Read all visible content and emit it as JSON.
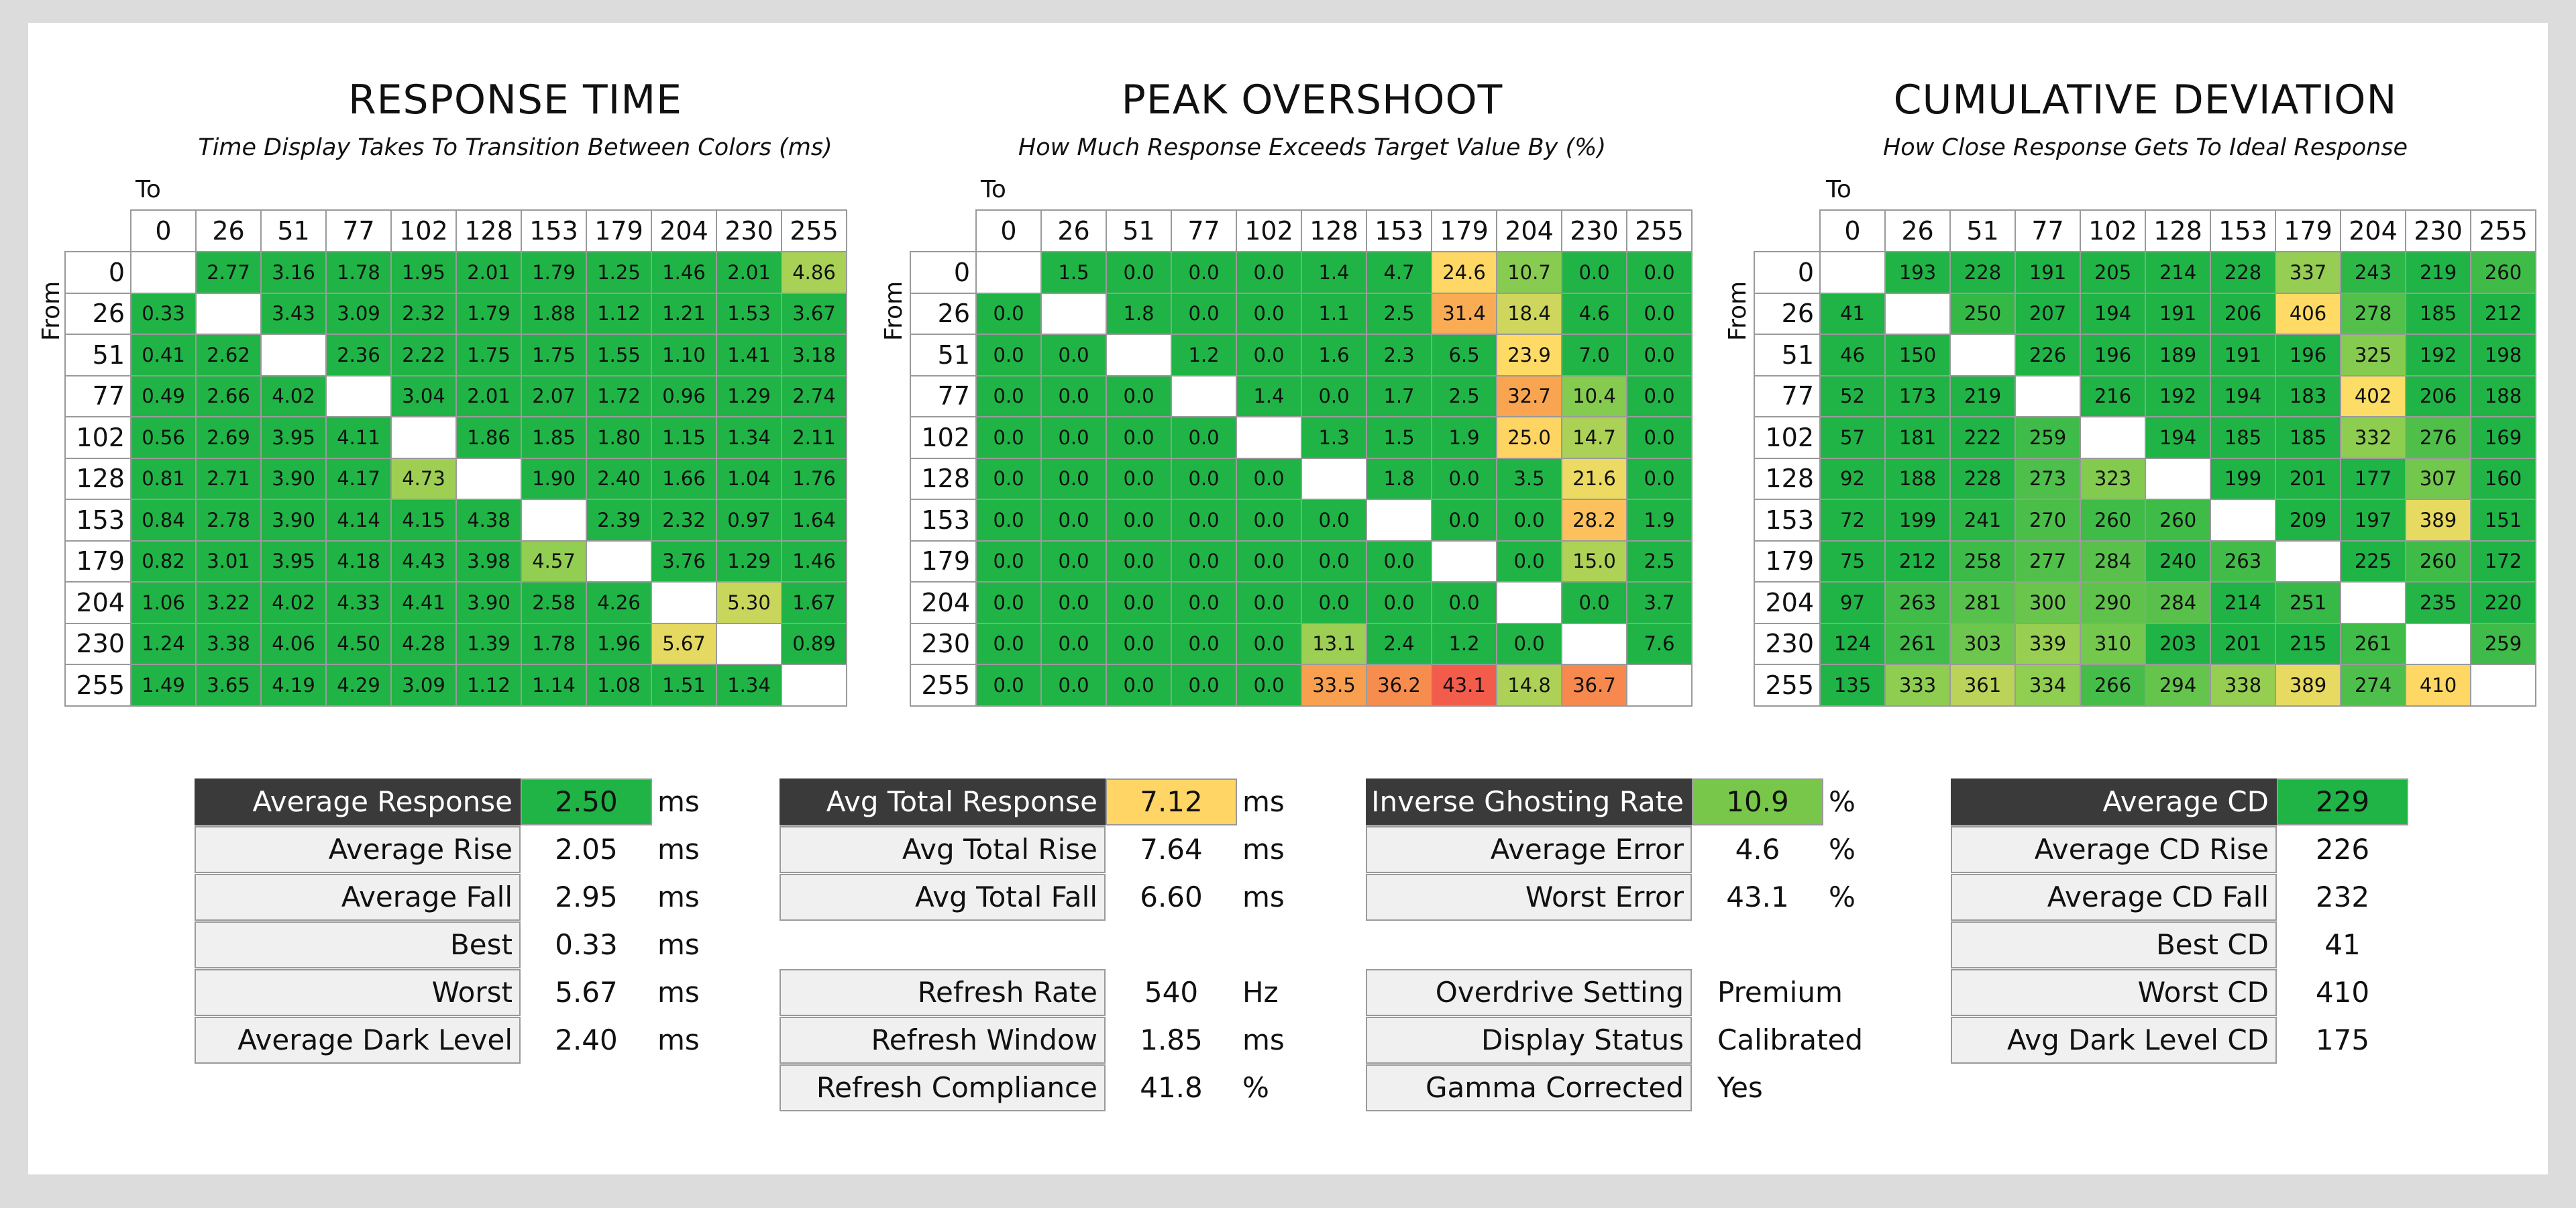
{
  "axis_labels": {
    "to": "To",
    "from": "From"
  },
  "levels": [
    "0",
    "26",
    "51",
    "77",
    "102",
    "128",
    "153",
    "179",
    "204",
    "230",
    "255"
  ],
  "colors": {
    "header_dark": "#3a3a3a",
    "green": "#1fb445",
    "yellow": "#ffdd66",
    "red": "#f35c4b"
  },
  "panels": [
    {
      "title": "RESPONSE TIME",
      "subtitle": "Time Display Takes To Transition Between Colors (ms)"
    },
    {
      "title": "PEAK OVERSHOOT",
      "subtitle": "How Much Response Exceeds Target Value By (%)"
    },
    {
      "title": "CUMULATIVE DEVIATION",
      "subtitle": "How Close Response Gets To Ideal Response"
    }
  ],
  "chart_data": [
    {
      "type": "heatmap",
      "title": "RESPONSE TIME",
      "subtitle": "Time Display Takes To Transition Between Colors (ms)",
      "xlabel": "To",
      "ylabel": "From",
      "x": [
        "0",
        "26",
        "51",
        "77",
        "102",
        "128",
        "153",
        "179",
        "204",
        "230",
        "255"
      ],
      "y": [
        "0",
        "26",
        "51",
        "77",
        "102",
        "128",
        "153",
        "179",
        "204",
        "230",
        "255"
      ],
      "values": [
        [
          null,
          "2.77",
          "3.16",
          "1.78",
          "1.95",
          "2.01",
          "1.79",
          "1.25",
          "1.46",
          "2.01",
          "4.86"
        ],
        [
          "0.33",
          null,
          "3.43",
          "3.09",
          "2.32",
          "1.79",
          "1.88",
          "1.12",
          "1.21",
          "1.53",
          "3.67"
        ],
        [
          "0.41",
          "2.62",
          null,
          "2.36",
          "2.22",
          "1.75",
          "1.75",
          "1.55",
          "1.10",
          "1.41",
          "3.18"
        ],
        [
          "0.49",
          "2.66",
          "4.02",
          null,
          "3.04",
          "2.01",
          "2.07",
          "1.72",
          "0.96",
          "1.29",
          "2.74"
        ],
        [
          "0.56",
          "2.69",
          "3.95",
          "4.11",
          null,
          "1.86",
          "1.85",
          "1.80",
          "1.15",
          "1.34",
          "2.11"
        ],
        [
          "0.81",
          "2.71",
          "3.90",
          "4.17",
          "4.73",
          null,
          "1.90",
          "2.40",
          "1.66",
          "1.04",
          "1.76"
        ],
        [
          "0.84",
          "2.78",
          "3.90",
          "4.14",
          "4.15",
          "4.38",
          null,
          "2.39",
          "2.32",
          "0.97",
          "1.64"
        ],
        [
          "0.82",
          "3.01",
          "3.95",
          "4.18",
          "4.43",
          "3.98",
          "4.57",
          null,
          "3.76",
          "1.29",
          "1.46"
        ],
        [
          "1.06",
          "3.22",
          "4.02",
          "4.33",
          "4.41",
          "3.90",
          "2.58",
          "4.26",
          null,
          "5.30",
          "1.67"
        ],
        [
          "1.24",
          "3.38",
          "4.06",
          "4.50",
          "4.28",
          "1.39",
          "1.78",
          "1.96",
          "5.67",
          null,
          "0.89"
        ],
        [
          "1.49",
          "3.65",
          "4.19",
          "4.29",
          "3.09",
          "1.12",
          "1.14",
          "1.08",
          "1.51",
          "1.34",
          null
        ]
      ]
    },
    {
      "type": "heatmap",
      "title": "PEAK OVERSHOOT",
      "subtitle": "How Much Response Exceeds Target Value By (%)",
      "xlabel": "To",
      "ylabel": "From",
      "x": [
        "0",
        "26",
        "51",
        "77",
        "102",
        "128",
        "153",
        "179",
        "204",
        "230",
        "255"
      ],
      "y": [
        "0",
        "26",
        "51",
        "77",
        "102",
        "128",
        "153",
        "179",
        "204",
        "230",
        "255"
      ],
      "values": [
        [
          null,
          "1.5",
          "0.0",
          "0.0",
          "0.0",
          "1.4",
          "4.7",
          "24.6",
          "10.7",
          "0.0",
          "0.0"
        ],
        [
          "0.0",
          null,
          "1.8",
          "0.0",
          "0.0",
          "1.1",
          "2.5",
          "31.4",
          "18.4",
          "4.6",
          "0.0"
        ],
        [
          "0.0",
          "0.0",
          null,
          "1.2",
          "0.0",
          "1.6",
          "2.3",
          "6.5",
          "23.9",
          "7.0",
          "0.0"
        ],
        [
          "0.0",
          "0.0",
          "0.0",
          null,
          "1.4",
          "0.0",
          "1.7",
          "2.5",
          "32.7",
          "10.4",
          "0.0"
        ],
        [
          "0.0",
          "0.0",
          "0.0",
          "0.0",
          null,
          "1.3",
          "1.5",
          "1.9",
          "25.0",
          "14.7",
          "0.0"
        ],
        [
          "0.0",
          "0.0",
          "0.0",
          "0.0",
          "0.0",
          null,
          "1.8",
          "0.0",
          "3.5",
          "21.6",
          "0.0"
        ],
        [
          "0.0",
          "0.0",
          "0.0",
          "0.0",
          "0.0",
          "0.0",
          null,
          "0.0",
          "0.0",
          "28.2",
          "1.9"
        ],
        [
          "0.0",
          "0.0",
          "0.0",
          "0.0",
          "0.0",
          "0.0",
          "0.0",
          null,
          "0.0",
          "15.0",
          "2.5"
        ],
        [
          "0.0",
          "0.0",
          "0.0",
          "0.0",
          "0.0",
          "0.0",
          "0.0",
          "0.0",
          null,
          "0.0",
          "3.7"
        ],
        [
          "0.0",
          "0.0",
          "0.0",
          "0.0",
          "0.0",
          "13.1",
          "2.4",
          "1.2",
          "0.0",
          null,
          "7.6"
        ],
        [
          "0.0",
          "0.0",
          "0.0",
          "0.0",
          "0.0",
          "33.5",
          "36.2",
          "43.1",
          "14.8",
          "36.7",
          null
        ]
      ]
    },
    {
      "type": "heatmap",
      "title": "CUMULATIVE DEVIATION",
      "subtitle": "How Close Response Gets To Ideal Response",
      "xlabel": "To",
      "ylabel": "From",
      "x": [
        "0",
        "26",
        "51",
        "77",
        "102",
        "128",
        "153",
        "179",
        "204",
        "230",
        "255"
      ],
      "y": [
        "0",
        "26",
        "51",
        "77",
        "102",
        "128",
        "153",
        "179",
        "204",
        "230",
        "255"
      ],
      "values": [
        [
          null,
          "193",
          "228",
          "191",
          "205",
          "214",
          "228",
          "337",
          "243",
          "219",
          "260"
        ],
        [
          "41",
          null,
          "250",
          "207",
          "194",
          "191",
          "206",
          "406",
          "278",
          "185",
          "212"
        ],
        [
          "46",
          "150",
          null,
          "226",
          "196",
          "189",
          "191",
          "196",
          "325",
          "192",
          "198"
        ],
        [
          "52",
          "173",
          "219",
          null,
          "216",
          "192",
          "194",
          "183",
          "402",
          "206",
          "188"
        ],
        [
          "57",
          "181",
          "222",
          "259",
          null,
          "194",
          "185",
          "185",
          "332",
          "276",
          "169"
        ],
        [
          "92",
          "188",
          "228",
          "273",
          "323",
          null,
          "199",
          "201",
          "177",
          "307",
          "160"
        ],
        [
          "72",
          "199",
          "241",
          "270",
          "260",
          "260",
          null,
          "209",
          "197",
          "389",
          "151"
        ],
        [
          "75",
          "212",
          "258",
          "277",
          "284",
          "240",
          "263",
          null,
          "225",
          "260",
          "172"
        ],
        [
          "97",
          "263",
          "281",
          "300",
          "290",
          "284",
          "214",
          "251",
          null,
          "235",
          "220"
        ],
        [
          "124",
          "261",
          "303",
          "339",
          "310",
          "203",
          "201",
          "215",
          "261",
          null,
          "259"
        ],
        [
          "135",
          "333",
          "361",
          "334",
          "266",
          "294",
          "338",
          "389",
          "274",
          "410",
          null
        ]
      ]
    }
  ],
  "stats": {
    "response": [
      {
        "label": "Average Response",
        "value": "2.50",
        "unit": "ms",
        "head": true,
        "fill": "#1fb445"
      },
      {
        "label": "Average Rise",
        "value": "2.05",
        "unit": "ms"
      },
      {
        "label": "Average Fall",
        "value": "2.95",
        "unit": "ms"
      },
      {
        "label": "Best",
        "value": "0.33",
        "unit": "ms"
      },
      {
        "label": "Worst",
        "value": "5.67",
        "unit": "ms"
      },
      {
        "label": "Average Dark Level",
        "value": "2.40",
        "unit": "ms"
      }
    ],
    "total": [
      {
        "label": "Avg Total Response",
        "value": "7.12",
        "unit": "ms",
        "head": true,
        "fill": "#ffd566"
      },
      {
        "label": "Avg Total Rise",
        "value": "7.64",
        "unit": "ms"
      },
      {
        "label": "Avg Total Fall",
        "value": "6.60",
        "unit": "ms"
      }
    ],
    "refresh": [
      {
        "label": "Refresh Rate",
        "value": "540",
        "unit": "Hz"
      },
      {
        "label": "Refresh Window",
        "value": "1.85",
        "unit": "ms"
      },
      {
        "label": "Refresh Compliance",
        "value": "41.8",
        "unit": "%"
      }
    ],
    "overshoot": [
      {
        "label": "Inverse Ghosting Rate",
        "value": "10.9",
        "unit": "%",
        "head": true,
        "fill": "#79c74a"
      },
      {
        "label": "Average Error",
        "value": "4.6",
        "unit": "%"
      },
      {
        "label": "Worst Error",
        "value": "43.1",
        "unit": "%"
      }
    ],
    "settings": [
      {
        "label": "Overdrive Setting",
        "value": "Premium"
      },
      {
        "label": "Display Status",
        "value": "Calibrated"
      },
      {
        "label": "Gamma Corrected",
        "value": "Yes"
      }
    ],
    "cd": [
      {
        "label": "Average CD",
        "value": "229",
        "head": true,
        "fill": "#1fb445"
      },
      {
        "label": "Average CD Rise",
        "value": "226"
      },
      {
        "label": "Average CD Fall",
        "value": "232"
      },
      {
        "label": "Best CD",
        "value": "41"
      },
      {
        "label": "Worst CD",
        "value": "410"
      },
      {
        "label": "Avg Dark Level CD",
        "value": "175"
      }
    ]
  }
}
